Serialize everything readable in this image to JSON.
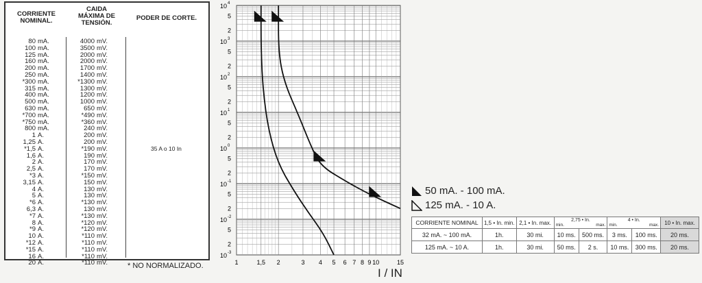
{
  "table": {
    "headers": {
      "corriente": [
        "CORRIENTE",
        "NOMINAL."
      ],
      "caida": [
        "CAIDA",
        "MÁXIMA DE",
        "TENSIÓN."
      ],
      "poder": "PODER DE CORTE."
    },
    "rows": [
      [
        "80",
        "mA.",
        "4000",
        "mV."
      ],
      [
        "100",
        "mA.",
        "3500",
        "mV."
      ],
      [
        "125",
        "mA.",
        "2000",
        "mV."
      ],
      [
        "160",
        "mA.",
        "2000",
        "mV."
      ],
      [
        "200",
        "mA.",
        "1700",
        "mV."
      ],
      [
        "250",
        "mA.",
        "1400",
        "mV."
      ],
      [
        "*300",
        "mA.",
        "*1300",
        "mV."
      ],
      [
        "315",
        "mA.",
        "1300",
        "mV."
      ],
      [
        "400",
        "mA.",
        "1200",
        "mV."
      ],
      [
        "500",
        "mA.",
        "1000",
        "mV."
      ],
      [
        "630",
        "mA.",
        "650",
        "mV."
      ],
      [
        "*700",
        "mA.",
        "*490",
        "mV."
      ],
      [
        "*750",
        "mA.",
        "*360",
        "mV."
      ],
      [
        "800",
        "mA.",
        "240",
        "mV."
      ],
      [
        "1",
        "A.",
        "200",
        "mV."
      ],
      [
        "1,25",
        "A.",
        "200",
        "mV."
      ],
      [
        "*1,5",
        "A.",
        "*190",
        "mV."
      ],
      [
        "1,6",
        "A.",
        "190",
        "mV."
      ],
      [
        "2",
        "A.",
        "170",
        "mV."
      ],
      [
        "2,5",
        "A.",
        "170",
        "mV."
      ],
      [
        "*3",
        "A.",
        "*150",
        "mV."
      ],
      [
        "3,15",
        "A.",
        "150",
        "mV."
      ],
      [
        "4",
        "A.",
        "130",
        "mV."
      ],
      [
        "5",
        "A.",
        "130",
        "mV."
      ],
      [
        "*6",
        "A.",
        "*130",
        "mV."
      ],
      [
        "6,3",
        "A.",
        "130",
        "mV."
      ],
      [
        "*7",
        "A.",
        "*130",
        "mV."
      ],
      [
        "8",
        "A.",
        "*120",
        "mV."
      ],
      [
        "*9",
        "A.",
        "*120",
        "mV."
      ],
      [
        "10",
        "A.",
        "*110",
        "mV."
      ],
      [
        "*12",
        "A.",
        "*110",
        "mV."
      ],
      [
        "*15",
        "A.",
        "*110",
        "mV."
      ],
      [
        "16",
        "A.",
        "*110",
        "mV."
      ],
      [
        "20",
        "A.",
        "*110",
        "mV."
      ]
    ],
    "poder_value": "35 A o 10 In",
    "note": "* NO NORMALIZADO."
  },
  "chart_data": {
    "type": "line",
    "xlabel": "I / IN",
    "xscale": "log",
    "yscale": "log",
    "xlim": [
      1,
      15
    ],
    "ylim": [
      0.001,
      10000
    ],
    "x_ticks": [
      "1",
      "1,5",
      "2",
      "3",
      "4",
      "5",
      "6",
      "7",
      "8",
      "9",
      "10",
      "15"
    ],
    "x_tick_values": [
      1,
      1.5,
      2,
      3,
      4,
      5,
      6,
      7,
      8,
      9,
      10,
      15
    ],
    "y_decade_exponents": [
      "4",
      "3",
      "2",
      "1",
      "0",
      "-1",
      "-2",
      "-3"
    ],
    "series": [
      {
        "name": "50 mA. - 100 mA.",
        "x": [
          1.5,
          1.5,
          1.55,
          1.7,
          2.0,
          2.6,
          3.3,
          4.2,
          5.0
        ],
        "y": [
          10000,
          600,
          40,
          3,
          0.35,
          0.06,
          0.015,
          0.004,
          0.001
        ]
      },
      {
        "name": "125 mA. - 10 A.",
        "x": [
          2.0,
          2.0,
          2.2,
          2.8,
          3.4,
          4.0,
          6.0,
          9.0,
          15.0
        ],
        "y": [
          10000,
          500,
          70,
          8,
          1.2,
          0.32,
          0.12,
          0.05,
          0.02
        ]
      }
    ],
    "markers": [
      {
        "series": "50 mA. - 100 mA.",
        "x": 1.5,
        "y": 5000
      },
      {
        "series": "125 mA. - 10 A.",
        "x": 2.0,
        "y": 5000
      },
      {
        "series": "125 mA. - 10 A.",
        "x": 4.0,
        "y": 0.6
      },
      {
        "series": "125 mA. - 10 A.",
        "x": 10.0,
        "y": 0.06
      }
    ]
  },
  "legend": [
    {
      "label": "50 mA. - 100 mA.",
      "style": "filled"
    },
    {
      "label": "125 mA. - 10 A.",
      "style": "outline"
    }
  ],
  "response_table": {
    "header": {
      "corriente": "CORRIENTE NOMINAL",
      "c1": "1,5 • In. min.",
      "c2": "2,1 • In. max.",
      "c3_title": "2,75 • In.",
      "c3_min": "min.",
      "c3_max": "max.",
      "c4_title": "4 • In.",
      "c4_min": "min.",
      "c4_max": "max.",
      "c5": "10 • In. max."
    },
    "rows": [
      [
        "32 mA. ~ 100 mA.",
        "1h.",
        "30 mi.",
        "10 ms.",
        "500 ms.",
        "3 ms.",
        "100 ms.",
        "20 ms."
      ],
      [
        "125 mA. ~ 10 A.",
        "1h.",
        "30 mi.",
        "50 ms.",
        "2 s.",
        "10 ms.",
        "300 ms.",
        "20 ms."
      ]
    ]
  }
}
